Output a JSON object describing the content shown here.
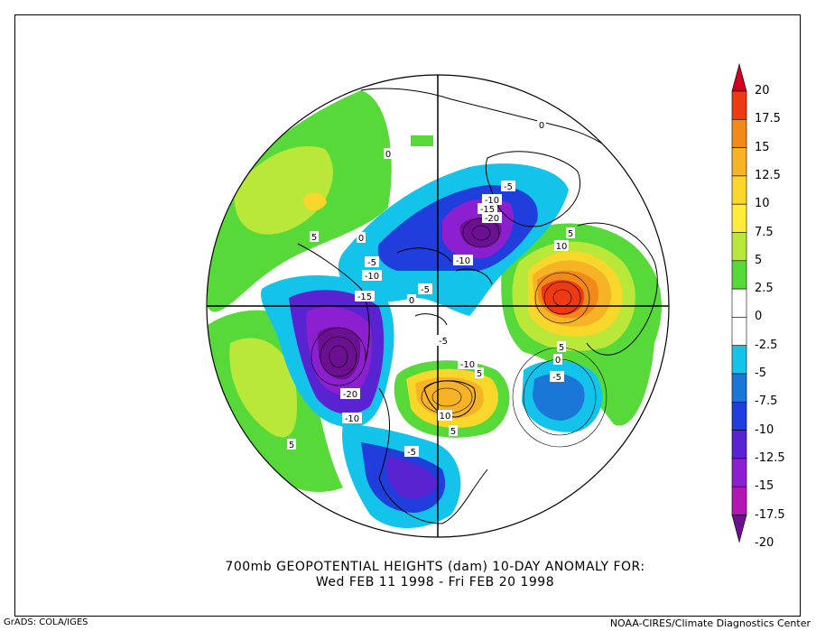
{
  "title": {
    "line1": "700mb GEOPOTENTIAL HEIGHTS (dam)   10-DAY ANOMALY FOR:",
    "line2": "Wed FEB 11 1998 - Fri FEB 20 1998"
  },
  "credits": {
    "left": "GrADS: COLA/IGES",
    "right": "NOAA-CIRES/Climate Diagnostics Center"
  },
  "colorbar": {
    "labels": [
      "20",
      "17.5",
      "15",
      "12.5",
      "10",
      "7.5",
      "5",
      "2.5",
      "0",
      "-2.5",
      "-5",
      "-7.5",
      "-10",
      "-12.5",
      "-15",
      "-17.5",
      "-20"
    ],
    "colors": [
      "#d2001e",
      "#ee3a12",
      "#f28a1a",
      "#f5b325",
      "#f8d62a",
      "#ffec3a",
      "#b9e83a",
      "#58d93a",
      "#ffffff",
      "#ffffff",
      "#14c3ea",
      "#1a77d8",
      "#1f3edc",
      "#5a23d2",
      "#8c20d0",
      "#b316b4",
      "#6b1090"
    ]
  },
  "contour_labels": [
    "0",
    "0",
    "5",
    "0",
    "-5",
    "-10",
    "-15",
    "-20",
    "-5",
    "-10",
    "-15",
    "-5",
    "0",
    "-10",
    "10",
    "5",
    "-5",
    "5",
    "0",
    "-5",
    "-10",
    "5",
    "-20",
    "-10",
    "5",
    "-5",
    "10",
    "5"
  ],
  "colors": {
    "neg_deep": "#6b1090",
    "pos_deep": "#d2001e",
    "coast": "#000000"
  }
}
